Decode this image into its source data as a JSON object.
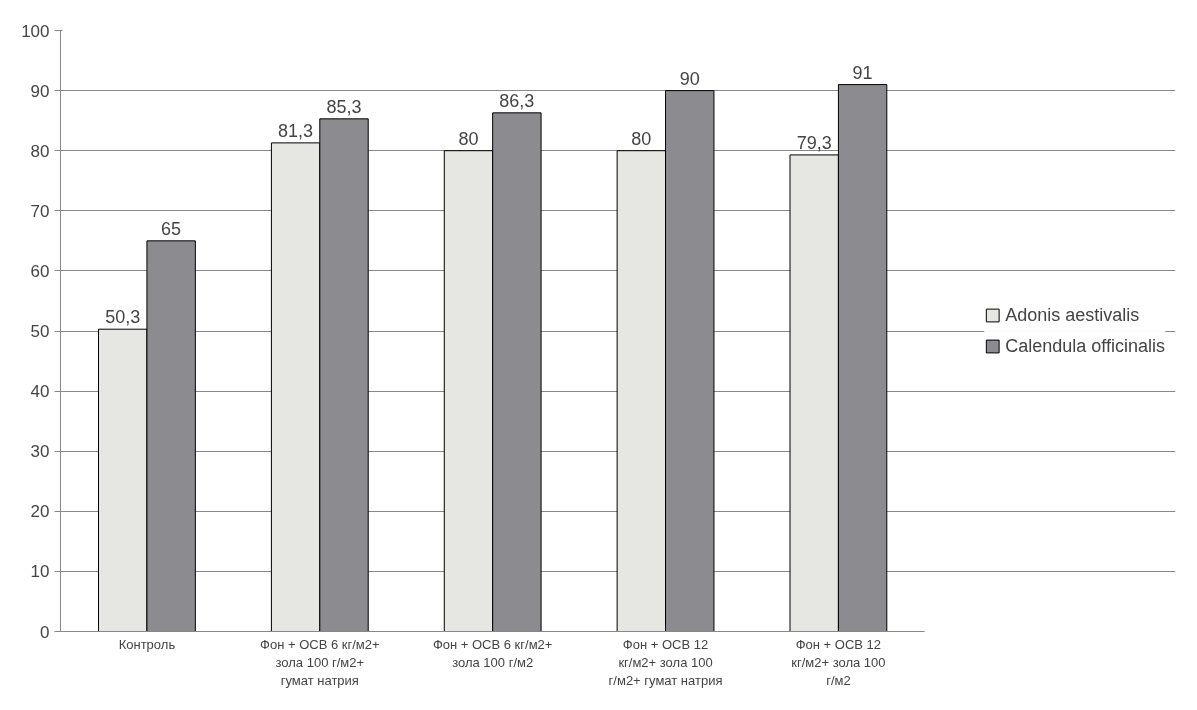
{
  "chart_data": {
    "type": "bar",
    "categories": [
      "Контроль",
      "Фон + ОСВ 6 кг/м2+ зола 100 г/м2+ гумат натрия",
      "Фон + ОСВ 6 кг/м2+ зола 100 г/м2",
      "Фон + ОСВ 12 кг/м2+ зола 100 г/м2+ гумат натрия",
      "Фон + ОСВ 12 кг/м2+ зола 100 г/м2"
    ],
    "series": [
      {
        "name": "Adonis aestivalis",
        "color": "#e6e6e2",
        "values": [
          50.3,
          81.3,
          80,
          80,
          79.3
        ],
        "value_labels": [
          "50,3",
          "81,3",
          "80",
          "80",
          "79,3"
        ]
      },
      {
        "name": "Calendula officinalis",
        "color": "#8c8c90",
        "values": [
          65,
          85.3,
          86.3,
          90,
          91
        ],
        "value_labels": [
          "65",
          "85,3",
          "86,3",
          "90",
          "91"
        ]
      }
    ],
    "ylim": [
      0,
      100
    ],
    "yticks": [
      0,
      10,
      20,
      30,
      40,
      50,
      60,
      70,
      80,
      90,
      100
    ],
    "grid": "y",
    "legend": "right"
  }
}
